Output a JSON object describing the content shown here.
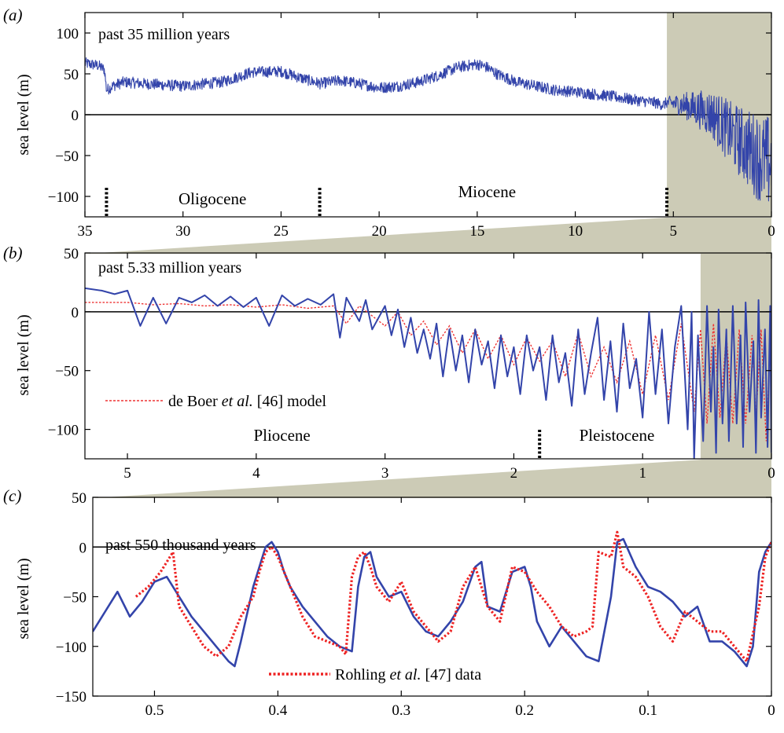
{
  "chart_data": [
    {
      "panel_label": "(a)",
      "type": "line",
      "title": "past 35 million years",
      "ylabel": "sea level (m)",
      "xlabel": "",
      "xlim": [
        35,
        0
      ],
      "ylim": [
        -125,
        125
      ],
      "xticks": [
        35,
        30,
        25,
        20,
        15,
        10,
        5,
        0
      ],
      "xtick_labels": [
        "35",
        "30",
        "25",
        "20",
        "15",
        "10",
        "5",
        "0"
      ],
      "yticks": [
        100,
        50,
        0,
        -50,
        -100
      ],
      "ytick_labels": [
        "100",
        "50",
        "0",
        "−50",
        "−100"
      ],
      "zero_line": true,
      "shaded_region": [
        5.33,
        0
      ],
      "colors": {
        "series": "#3344aa",
        "shade": "#cccbb6",
        "boundary": "#000000"
      },
      "epoch_boundaries": [
        33.9,
        23.03,
        5.33
      ],
      "epochs": [
        {
          "name": "Oligocene",
          "center": 28.5
        },
        {
          "name": "Miocene",
          "center": 14.5
        }
      ],
      "series": [
        {
          "noise": 7,
          "x": [
            35,
            34.3,
            34.0,
            33.9,
            33.6,
            33.0,
            32.0,
            30.0,
            28.0,
            26.5,
            25.0,
            24.0,
            23.0,
            22.0,
            21.0,
            20.0,
            19.0,
            18.0,
            17.0,
            16.0,
            15.0,
            14.5,
            14.0,
            13.0,
            12.0,
            11.0,
            10.0,
            9.0,
            8.0,
            7.0,
            6.0,
            5.5,
            5.33,
            4.5,
            3.5,
            3.0,
            2.5,
            2.0,
            1.5,
            1.0,
            0.5,
            0.0
          ],
          "y": [
            63,
            60,
            55,
            30,
            35,
            40,
            38,
            35,
            40,
            52,
            53,
            45,
            38,
            42,
            38,
            33,
            35,
            40,
            48,
            58,
            62,
            58,
            50,
            40,
            35,
            30,
            28,
            25,
            22,
            18,
            15,
            12,
            15,
            12,
            5,
            0,
            -12,
            -25,
            -35,
            -45,
            -55,
            -60
          ]
        }
      ]
    },
    {
      "panel_label": "(b)",
      "type": "line",
      "title": "past 5.33 million years",
      "ylabel": "sea level (m)",
      "xlabel": "",
      "xlim": [
        5.33,
        0
      ],
      "ylim": [
        -125,
        50
      ],
      "xticks": [
        5,
        4,
        3,
        2,
        1,
        0
      ],
      "xtick_labels": [
        "5",
        "4",
        "3",
        "2",
        "1",
        "0"
      ],
      "yticks": [
        50,
        0,
        -50,
        -100
      ],
      "ytick_labels": [
        "50",
        "0",
        "−50",
        "−100"
      ],
      "zero_line": true,
      "shaded_region": [
        0.55,
        0
      ],
      "colors": {
        "data": "#3344aa",
        "model": "#ee3333",
        "shade": "#cccbb6",
        "boundary": "#000000"
      },
      "epoch_boundaries": [
        1.8
      ],
      "epochs": [
        {
          "name": "Pliocene",
          "center": 3.8
        },
        {
          "name": "Pleistocene",
          "center": 1.2
        }
      ],
      "legend": {
        "label_pre": "de Boer ",
        "label_em": "et al.",
        "label_post": " [46] model"
      },
      "series": [
        {
          "style": "solid",
          "x": [
            5.33,
            5.2,
            5.1,
            5.0,
            4.9,
            4.8,
            4.7,
            4.6,
            4.5,
            4.4,
            4.3,
            4.2,
            4.1,
            4.0,
            3.9,
            3.8,
            3.7,
            3.6,
            3.5,
            3.4,
            3.35,
            3.3,
            3.2,
            3.15,
            3.1,
            3.0,
            2.95,
            2.9,
            2.85,
            2.8,
            2.75,
            2.7,
            2.65,
            2.6,
            2.55,
            2.5,
            2.45,
            2.4,
            2.35,
            2.3,
            2.25,
            2.2,
            2.15,
            2.1,
            2.05,
            2.0,
            1.95,
            1.9,
            1.85,
            1.8,
            1.75,
            1.7,
            1.65,
            1.6,
            1.55,
            1.5,
            1.45,
            1.4,
            1.35,
            1.3,
            1.25,
            1.2,
            1.15,
            1.1,
            1.05,
            1.0,
            0.95,
            0.9,
            0.85,
            0.8,
            0.75,
            0.7,
            0.65,
            0.62,
            0.6,
            0.57,
            0.53,
            0.5,
            0.47,
            0.45,
            0.43,
            0.41,
            0.38,
            0.35,
            0.33,
            0.3,
            0.27,
            0.24,
            0.22,
            0.2,
            0.17,
            0.14,
            0.12,
            0.1,
            0.08,
            0.05,
            0.03,
            0.01,
            0.0
          ],
          "y": [
            20,
            18,
            15,
            18,
            -12,
            12,
            -10,
            12,
            8,
            14,
            5,
            13,
            4,
            12,
            -12,
            14,
            5,
            11,
            6,
            15,
            -22,
            12,
            -8,
            10,
            -15,
            5,
            -20,
            2,
            -30,
            -5,
            -35,
            -15,
            -40,
            -10,
            -55,
            -15,
            -50,
            -20,
            -60,
            -15,
            -45,
            -25,
            -65,
            -20,
            -55,
            -30,
            -70,
            -20,
            -50,
            -30,
            -75,
            -20,
            -60,
            -35,
            -80,
            -15,
            -70,
            -35,
            -5,
            -75,
            -25,
            -85,
            -10,
            -65,
            -40,
            -90,
            0,
            -70,
            -15,
            -95,
            -30,
            5,
            -100,
            0,
            -125,
            -20,
            -110,
            5,
            -85,
            -30,
            -120,
            2,
            -95,
            -15,
            -110,
            5,
            -95,
            -20,
            -115,
            8,
            -85,
            -25,
            -120,
            10,
            -90,
            -15,
            -115,
            5,
            -120
          ]
        },
        {
          "style": "dotted",
          "x": [
            5.33,
            5.0,
            4.8,
            4.6,
            4.4,
            4.2,
            4.0,
            3.8,
            3.6,
            3.4,
            3.3,
            3.2,
            3.0,
            2.9,
            2.8,
            2.7,
            2.6,
            2.5,
            2.4,
            2.3,
            2.2,
            2.1,
            2.0,
            1.9,
            1.8,
            1.7,
            1.6,
            1.5,
            1.4,
            1.3,
            1.2,
            1.1,
            1.0,
            0.9,
            0.8,
            0.7,
            0.6,
            0.55,
            0.5,
            0.45,
            0.4,
            0.35,
            0.3,
            0.25,
            0.2,
            0.15,
            0.12,
            0.08,
            0.04,
            0.0
          ],
          "y": [
            8,
            8,
            6,
            7,
            5,
            6,
            4,
            6,
            3,
            5,
            -10,
            5,
            -12,
            0,
            -20,
            -8,
            -28,
            -12,
            -35,
            -15,
            -40,
            -20,
            -45,
            -22,
            -42,
            -25,
            -55,
            -18,
            -55,
            -30,
            -60,
            -25,
            -70,
            -20,
            -75,
            -10,
            -85,
            -15,
            -95,
            -10,
            -90,
            -20,
            -95,
            -15,
            -95,
            -20,
            -90,
            -15,
            -110,
            0
          ]
        }
      ]
    },
    {
      "panel_label": "(c)",
      "type": "line",
      "title": "past 550 thousand years",
      "ylabel": "sea level (m)",
      "xlabel": "",
      "xlim": [
        0.55,
        0
      ],
      "ylim": [
        -150,
        50
      ],
      "xticks": [
        0.5,
        0.4,
        0.3,
        0.2,
        0.1,
        0
      ],
      "xtick_labels": [
        "0.5",
        "0.4",
        "0.3",
        "0.2",
        "0.1",
        "0"
      ],
      "yticks": [
        50,
        0,
        -50,
        -100,
        -150
      ],
      "ytick_labels": [
        "50",
        "0",
        "−50",
        "−100",
        "−150"
      ],
      "zero_line": true,
      "colors": {
        "model": "#3344aa",
        "data": "#ee2222"
      },
      "legend": {
        "label_pre": "Rohling ",
        "label_em": "et al.",
        "label_post": " [47] data"
      },
      "series": [
        {
          "style": "solid",
          "x": [
            0.55,
            0.54,
            0.53,
            0.52,
            0.51,
            0.5,
            0.49,
            0.48,
            0.47,
            0.46,
            0.45,
            0.44,
            0.435,
            0.43,
            0.42,
            0.41,
            0.405,
            0.4,
            0.395,
            0.39,
            0.38,
            0.37,
            0.36,
            0.35,
            0.34,
            0.335,
            0.33,
            0.325,
            0.32,
            0.31,
            0.3,
            0.29,
            0.28,
            0.27,
            0.26,
            0.25,
            0.24,
            0.235,
            0.23,
            0.22,
            0.21,
            0.2,
            0.195,
            0.19,
            0.18,
            0.17,
            0.16,
            0.15,
            0.14,
            0.13,
            0.125,
            0.12,
            0.11,
            0.1,
            0.09,
            0.08,
            0.07,
            0.06,
            0.05,
            0.04,
            0.03,
            0.02,
            0.015,
            0.01,
            0.005,
            0.0
          ],
          "y": [
            -85,
            -65,
            -45,
            -70,
            -55,
            -35,
            -30,
            -50,
            -70,
            -85,
            -100,
            -115,
            -120,
            -95,
            -40,
            0,
            5,
            -5,
            -25,
            -40,
            -60,
            -75,
            -90,
            -100,
            -105,
            -40,
            -10,
            -5,
            -30,
            -50,
            -45,
            -70,
            -85,
            -90,
            -75,
            -55,
            -20,
            -15,
            -60,
            -65,
            -25,
            -20,
            -40,
            -75,
            -100,
            -80,
            -95,
            -110,
            -115,
            -50,
            5,
            8,
            -20,
            -40,
            -45,
            -55,
            -70,
            -60,
            -95,
            -95,
            -105,
            -120,
            -100,
            -25,
            -5,
            5
          ]
        },
        {
          "style": "dotted",
          "x": [
            0.515,
            0.505,
            0.495,
            0.485,
            0.48,
            0.475,
            0.47,
            0.46,
            0.45,
            0.44,
            0.43,
            0.42,
            0.415,
            0.41,
            0.405,
            0.4,
            0.39,
            0.38,
            0.37,
            0.36,
            0.35,
            0.345,
            0.34,
            0.335,
            0.33,
            0.325,
            0.32,
            0.31,
            0.3,
            0.29,
            0.28,
            0.27,
            0.26,
            0.25,
            0.24,
            0.23,
            0.22,
            0.21,
            0.2,
            0.19,
            0.18,
            0.17,
            0.16,
            0.15,
            0.145,
            0.14,
            0.13,
            0.125,
            0.12,
            0.11,
            0.1,
            0.09,
            0.08,
            0.07,
            0.06,
            0.05,
            0.04,
            0.03,
            0.02,
            0.01,
            0.005,
            0.0
          ],
          "y": [
            -50,
            -40,
            -25,
            -5,
            -60,
            -70,
            -80,
            -100,
            -110,
            -100,
            -70,
            -50,
            -25,
            -5,
            0,
            -10,
            -40,
            -70,
            -90,
            -95,
            -100,
            -108,
            -30,
            -10,
            -5,
            -20,
            -40,
            -55,
            -35,
            -65,
            -80,
            -95,
            -85,
            -40,
            -20,
            -60,
            -75,
            -20,
            -25,
            -45,
            -60,
            -80,
            -90,
            -85,
            -80,
            -5,
            -10,
            15,
            -20,
            -30,
            -50,
            -80,
            -95,
            -65,
            -75,
            -85,
            -85,
            -100,
            -115,
            -60,
            -10,
            5
          ]
        }
      ]
    }
  ]
}
